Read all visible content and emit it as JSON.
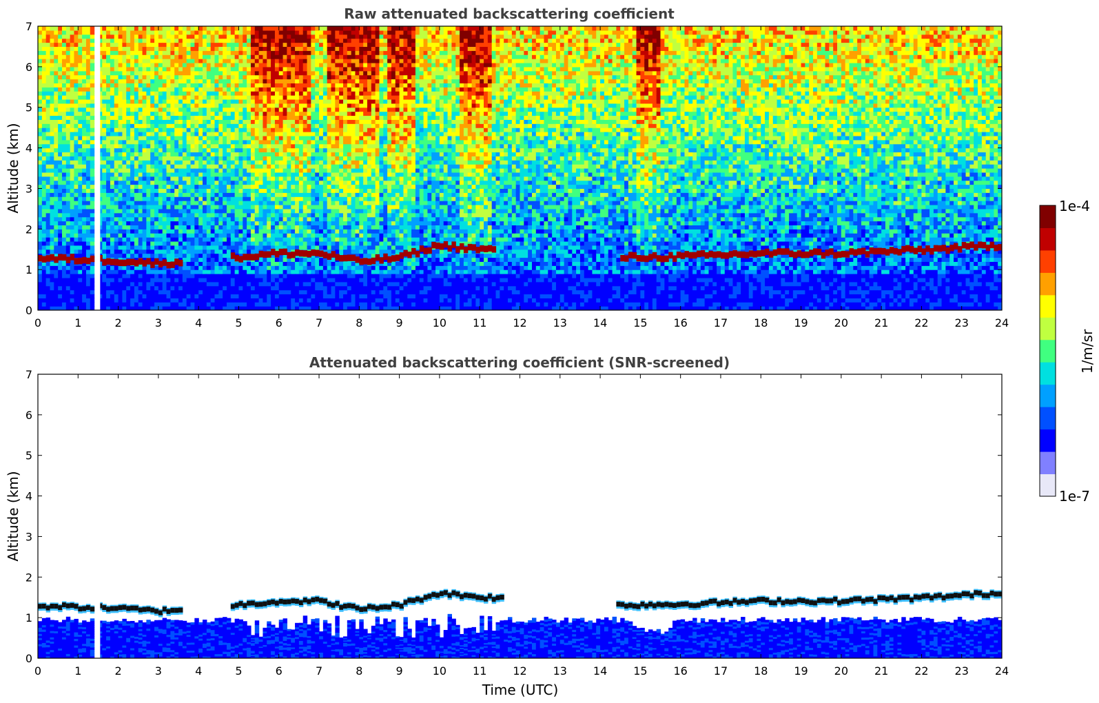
{
  "chart_data": [
    {
      "type": "heatmap",
      "title": "Raw attenuated backscattering coefficient",
      "xlabel": "",
      "ylabel": "Altitude (km)",
      "xlim": [
        0,
        24
      ],
      "ylim": [
        0,
        7
      ],
      "xticks": [
        "0",
        "1",
        "2",
        "3",
        "4",
        "5",
        "6",
        "7",
        "8",
        "9",
        "10",
        "11",
        "12",
        "13",
        "14",
        "15",
        "16",
        "17",
        "18",
        "19",
        "20",
        "21",
        "22",
        "23",
        "24"
      ],
      "yticks": [
        "0",
        "1",
        "2",
        "3",
        "4",
        "5",
        "6",
        "7"
      ],
      "data_gap": [
        1.45,
        1.55
      ],
      "cloud_layer_km": [
        {
          "t": 0,
          "h": 1.28
        },
        {
          "t": 1,
          "h": 1.25
        },
        {
          "t": 2,
          "h": 1.22
        },
        {
          "t": 3,
          "h": 1.15
        },
        {
          "t": 5,
          "h": 1.3
        },
        {
          "t": 6,
          "h": 1.4
        },
        {
          "t": 7,
          "h": 1.4
        },
        {
          "t": 8,
          "h": 1.2
        },
        {
          "t": 9,
          "h": 1.3
        },
        {
          "t": 10,
          "h": 1.6
        },
        {
          "t": 11,
          "h": 1.5
        },
        {
          "t": 14.5,
          "h": 1.3
        },
        {
          "t": 16,
          "h": 1.32
        },
        {
          "t": 18,
          "h": 1.4
        },
        {
          "t": 20,
          "h": 1.4
        },
        {
          "t": 22,
          "h": 1.48
        },
        {
          "t": 24,
          "h": 1.6
        }
      ]
    },
    {
      "type": "heatmap",
      "title": "Attenuated backscattering coefficient (SNR-screened)",
      "xlabel": "Time (UTC)",
      "ylabel": "Altitude (km)",
      "xlim": [
        0,
        24
      ],
      "ylim": [
        0,
        7
      ],
      "xticks": [
        "0",
        "1",
        "2",
        "3",
        "4",
        "5",
        "6",
        "7",
        "8",
        "9",
        "10",
        "11",
        "12",
        "13",
        "14",
        "15",
        "16",
        "17",
        "18",
        "19",
        "20",
        "21",
        "22",
        "23",
        "24"
      ],
      "yticks": [
        "0",
        "1",
        "2",
        "3",
        "4",
        "5",
        "6",
        "7"
      ],
      "data_gap": [
        1.45,
        1.55
      ],
      "boundary_layer_top_km": 0.95
    }
  ],
  "colorbar": {
    "label": "1/m/sr",
    "max_label": "1e-4",
    "min_label": "1e-7",
    "colors": [
      "#e8e8f8",
      "#8080ff",
      "#0000ff",
      "#0050ff",
      "#00a0ff",
      "#00e0e0",
      "#40ff80",
      "#c0ff40",
      "#ffff00",
      "#ffa000",
      "#ff4000",
      "#c00000",
      "#800000"
    ]
  }
}
